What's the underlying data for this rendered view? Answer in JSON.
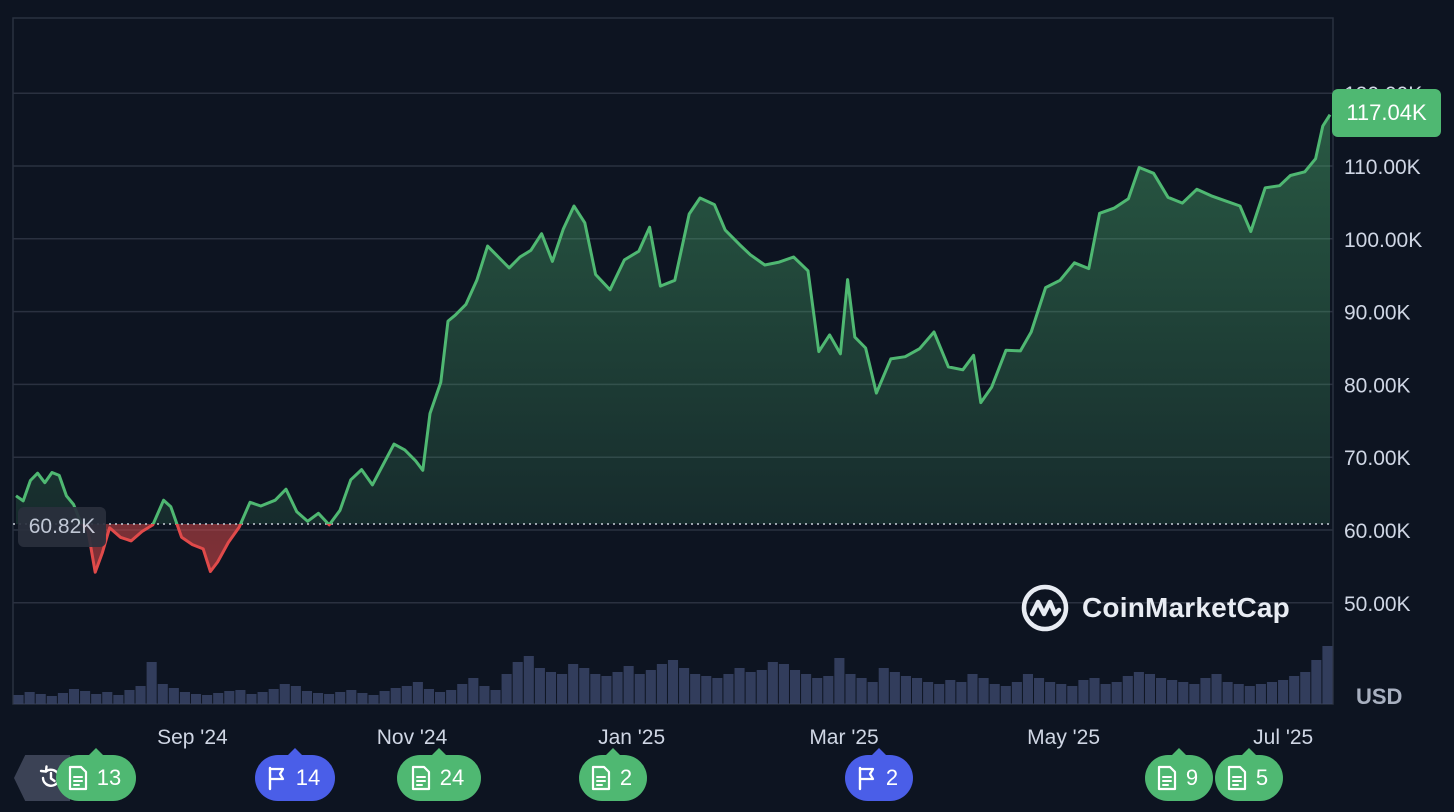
{
  "chart_data": {
    "type": "line",
    "currency": "USD",
    "y_ticks": [
      "50.00K",
      "60.00K",
      "70.00K",
      "80.00K",
      "90.00K",
      "100.00K",
      "110.00K",
      "120.00K"
    ],
    "y_tick_values": [
      50000,
      60000,
      70000,
      80000,
      90000,
      100000,
      110000,
      120000
    ],
    "ylim": [
      47000,
      121500
    ],
    "x_ticks": [
      "Sep '24",
      "Nov '24",
      "Jan '25",
      "Mar '25",
      "May '25",
      "Jul '25"
    ],
    "x_tick_dates": [
      "2024-09-01",
      "2024-11-01",
      "2025-01-01",
      "2025-03-01",
      "2025-05-01",
      "2025-07-01"
    ],
    "baseline_value": 60820,
    "baseline_label": "60.82K",
    "current_value": 117040,
    "current_label": "117.04K",
    "series": [
      {
        "x": [
          "2024-07-14",
          "2024-07-16",
          "2024-07-18",
          "2024-07-20",
          "2024-07-22",
          "2024-07-24",
          "2024-07-26",
          "2024-07-28",
          "2024-07-30",
          "2024-08-01",
          "2024-08-03",
          "2024-08-05",
          "2024-08-07",
          "2024-08-09",
          "2024-08-12",
          "2024-08-15",
          "2024-08-18",
          "2024-08-21",
          "2024-08-24",
          "2024-08-26",
          "2024-08-29",
          "2024-09-01",
          "2024-09-04",
          "2024-09-06",
          "2024-09-08",
          "2024-09-11",
          "2024-09-14",
          "2024-09-17",
          "2024-09-20",
          "2024-09-24",
          "2024-09-27",
          "2024-09-30",
          "2024-10-03",
          "2024-10-06",
          "2024-10-09",
          "2024-10-12",
          "2024-10-15",
          "2024-10-18",
          "2024-10-21",
          "2024-10-24",
          "2024-10-27",
          "2024-10-30",
          "2024-11-02",
          "2024-11-04",
          "2024-11-06",
          "2024-11-09",
          "2024-11-11",
          "2024-11-13",
          "2024-11-16",
          "2024-11-19",
          "2024-11-22",
          "2024-11-25",
          "2024-11-28",
          "2024-12-01",
          "2024-12-04",
          "2024-12-07",
          "2024-12-10",
          "2024-12-13",
          "2024-12-16",
          "2024-12-19",
          "2024-12-22",
          "2024-12-26",
          "2024-12-30",
          "2025-01-03",
          "2025-01-06",
          "2025-01-09",
          "2025-01-13",
          "2025-01-17",
          "2025-01-20",
          "2025-01-24",
          "2025-01-27",
          "2025-01-31",
          "2025-02-03",
          "2025-02-07",
          "2025-02-11",
          "2025-02-15",
          "2025-02-19",
          "2025-02-22",
          "2025-02-25",
          "2025-02-28",
          "2025-03-02",
          "2025-03-04",
          "2025-03-07",
          "2025-03-10",
          "2025-03-14",
          "2025-03-18",
          "2025-03-22",
          "2025-03-26",
          "2025-03-30",
          "2025-04-03",
          "2025-04-06",
          "2025-04-08",
          "2025-04-11",
          "2025-04-15",
          "2025-04-19",
          "2025-04-22",
          "2025-04-26",
          "2025-04-30",
          "2025-05-04",
          "2025-05-08",
          "2025-05-11",
          "2025-05-15",
          "2025-05-19",
          "2025-05-22",
          "2025-05-26",
          "2025-05-30",
          "2025-06-03",
          "2025-06-07",
          "2025-06-11",
          "2025-06-15",
          "2025-06-19",
          "2025-06-22",
          "2025-06-26",
          "2025-06-30",
          "2025-07-03",
          "2025-07-07",
          "2025-07-10",
          "2025-07-12",
          "2025-07-14"
        ],
        "y": [
          64700,
          64000,
          66800,
          67800,
          66500,
          67900,
          67500,
          64700,
          63500,
          61000,
          59900,
          54200,
          56900,
          60300,
          59000,
          58500,
          59800,
          60700,
          64100,
          63200,
          59000,
          58000,
          57400,
          54300,
          55600,
          58300,
          60400,
          63800,
          63300,
          64100,
          65600,
          62500,
          61200,
          62300,
          60700,
          62700,
          66900,
          68300,
          66200,
          69000,
          71800,
          71000,
          69500,
          68200,
          76000,
          80300,
          88700,
          89500,
          91000,
          94300,
          99000,
          97500,
          96000,
          97500,
          98400,
          100700,
          96900,
          101300,
          104500,
          102200,
          95100,
          93000,
          97100,
          98300,
          101600,
          93500,
          94300,
          103400,
          105600,
          104700,
          101200,
          99200,
          97800,
          96400,
          96800,
          97500,
          95600,
          84500,
          86800,
          84200,
          94400,
          86500,
          85000,
          78800,
          83500,
          83800,
          84900,
          87200,
          82400,
          82000,
          84000,
          77500,
          79600,
          84700,
          84600,
          87200,
          93300,
          94300,
          96700,
          95900,
          103500,
          104200,
          105500,
          109800,
          109000,
          105700,
          104900,
          106800,
          105900,
          105200,
          104500,
          101000,
          107000,
          107300,
          108700,
          109200,
          111000,
          115500,
          117040
        ]
      }
    ],
    "volume": {
      "scale_max": 100,
      "values": [
        9,
        12,
        10,
        8,
        11,
        15,
        13,
        10,
        12,
        9,
        14,
        18,
        42,
        20,
        16,
        12,
        10,
        9,
        11,
        13,
        14,
        10,
        12,
        15,
        20,
        18,
        13,
        11,
        10,
        12,
        14,
        11,
        9,
        13,
        16,
        18,
        22,
        15,
        12,
        14,
        20,
        26,
        18,
        14,
        30,
        42,
        48,
        36,
        32,
        30,
        40,
        36,
        30,
        28,
        32,
        38,
        30,
        34,
        40,
        44,
        36,
        30,
        28,
        26,
        30,
        36,
        32,
        34,
        42,
        40,
        34,
        30,
        26,
        28,
        46,
        30,
        26,
        22,
        36,
        32,
        28,
        26,
        22,
        20,
        24,
        22,
        30,
        26,
        20,
        18,
        22,
        30,
        26,
        22,
        20,
        18,
        24,
        26,
        20,
        22,
        28,
        32,
        30,
        26,
        24,
        22,
        20,
        26,
        30,
        22,
        20,
        18,
        20,
        22,
        24,
        28,
        32,
        44,
        58
      ]
    }
  },
  "events": [
    {
      "type": "news",
      "count": "13"
    },
    {
      "type": "flag",
      "count": "14"
    },
    {
      "type": "news",
      "count": "24"
    },
    {
      "type": "news",
      "count": "2"
    },
    {
      "type": "flag",
      "count": "2"
    },
    {
      "type": "news",
      "count": "9"
    },
    {
      "type": "news",
      "count": "5"
    }
  ],
  "brand": {
    "name": "CoinMarketCap"
  },
  "axis_unit": "USD",
  "colors": {
    "background": "#0d1421",
    "up": "#4fb872",
    "down": "#e04a4a",
    "grid": "#2a3140",
    "volume": "#3a4466",
    "event_news": "#4fb872",
    "event_flag": "#4a5ee8"
  }
}
